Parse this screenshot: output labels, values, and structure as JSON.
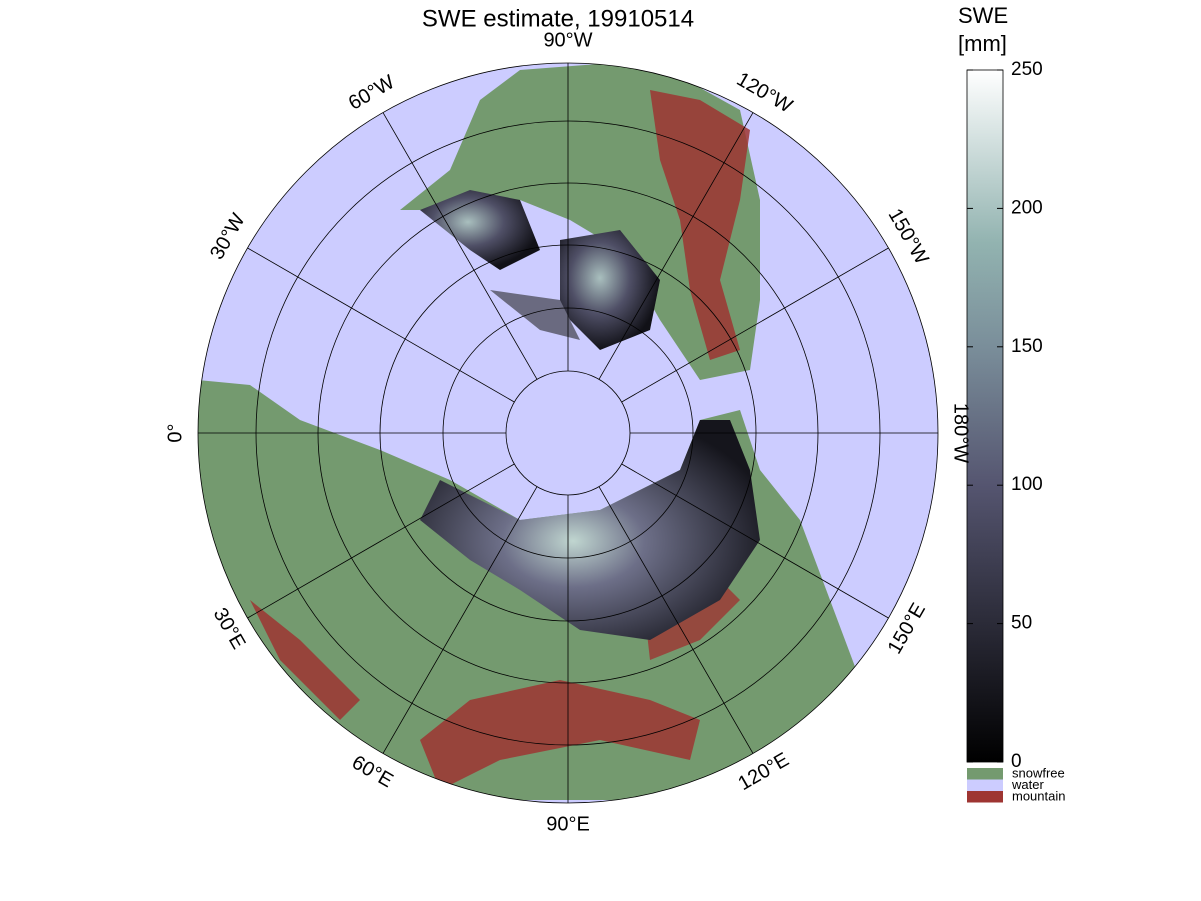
{
  "map": {
    "title": "SWE estimate, 19910514",
    "lon_labels": [
      "90°W",
      "120°W",
      "150°W",
      "180°W",
      "150°E",
      "120°E",
      "90°E",
      "60°E",
      "30°E",
      "0°",
      "30°W",
      "60°W"
    ],
    "colorbar": {
      "label_lines": [
        "SWE",
        "[mm]"
      ],
      "lim": [
        0,
        250
      ],
      "ticks": [
        0,
        50,
        100,
        150,
        200,
        250
      ]
    },
    "legend": [
      {
        "name": "snowfree",
        "color": "#749a6f"
      },
      {
        "name": "water",
        "color": "#ccccff"
      },
      {
        "name": "mountain",
        "color": "#9e3532"
      }
    ]
  }
}
